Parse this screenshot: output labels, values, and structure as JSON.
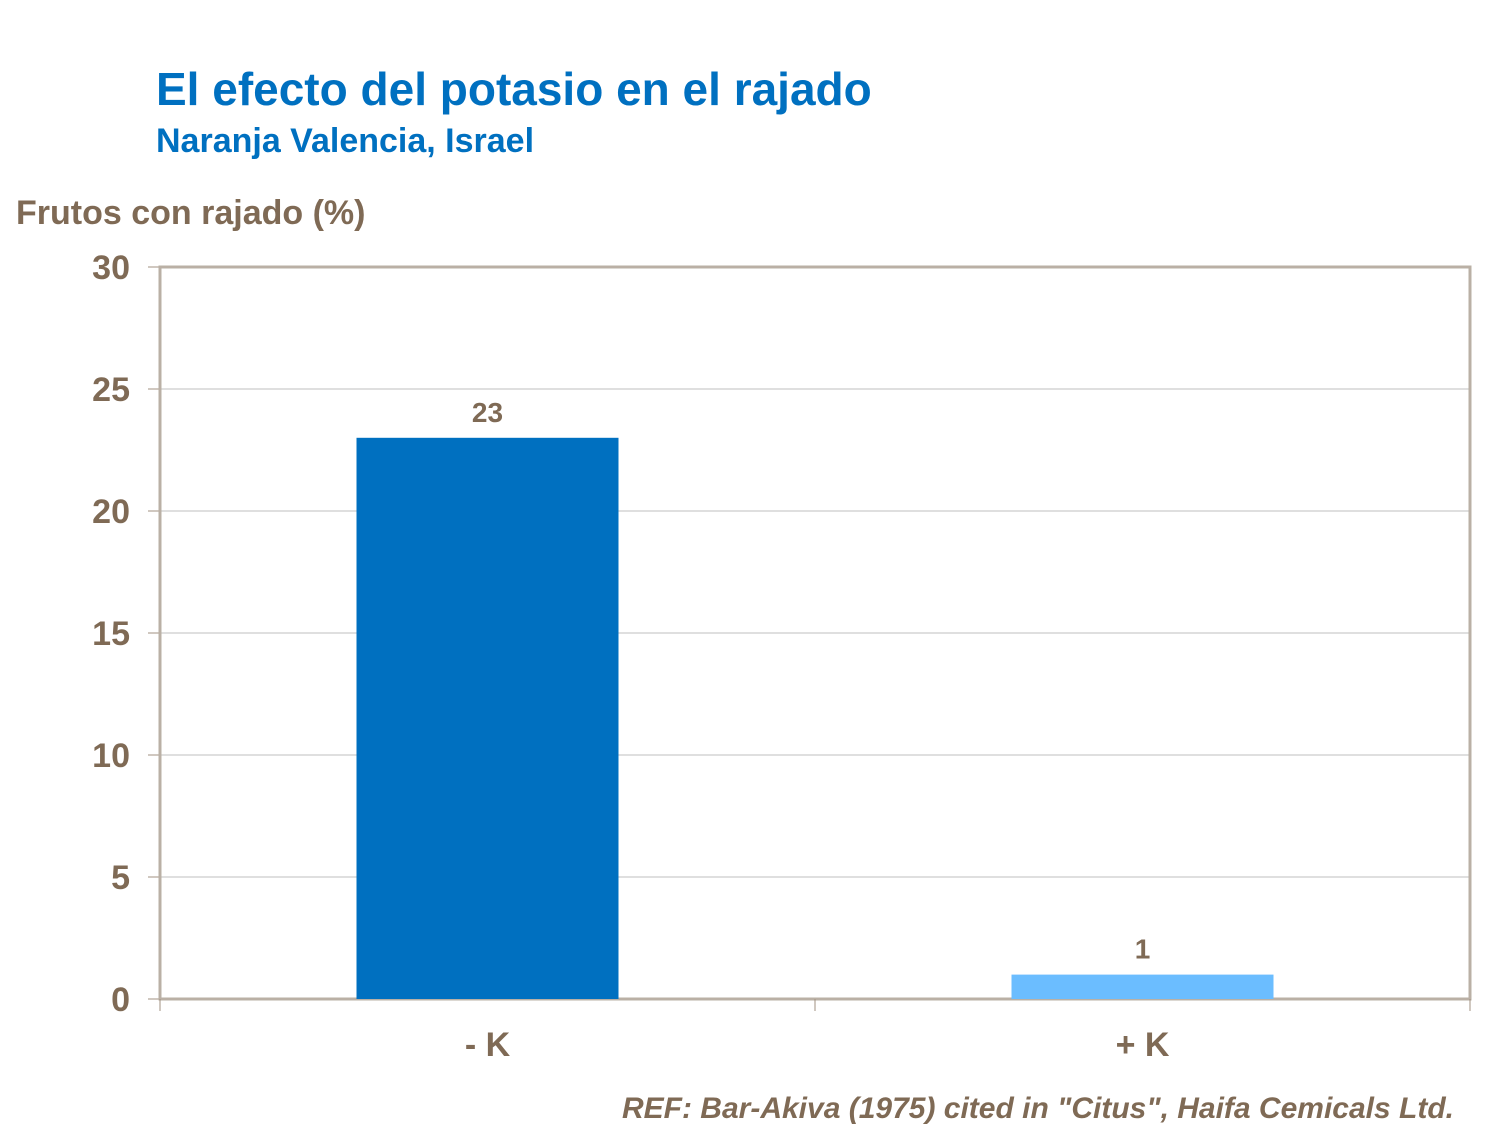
{
  "chart_data": {
    "type": "bar",
    "title": "El efecto del potasio en el rajado",
    "subtitle": "Naranja Valencia, Israel",
    "xlabel": "",
    "ylabel": "Frutos con rajado (%)",
    "categories": [
      "- K",
      "+ K"
    ],
    "values": [
      23,
      1
    ],
    "data_labels": [
      "23",
      "1"
    ],
    "bar_colors": [
      "#0070C0",
      "#6BBDFF"
    ],
    "ylim": [
      0,
      30
    ],
    "yticks": [
      0,
      5,
      10,
      15,
      20,
      25,
      30
    ],
    "grid": true,
    "legend": "none",
    "annotation": "REF: Bar-Akiva (1975) cited in \"Citus\", Haifa Cemicals Ltd."
  }
}
